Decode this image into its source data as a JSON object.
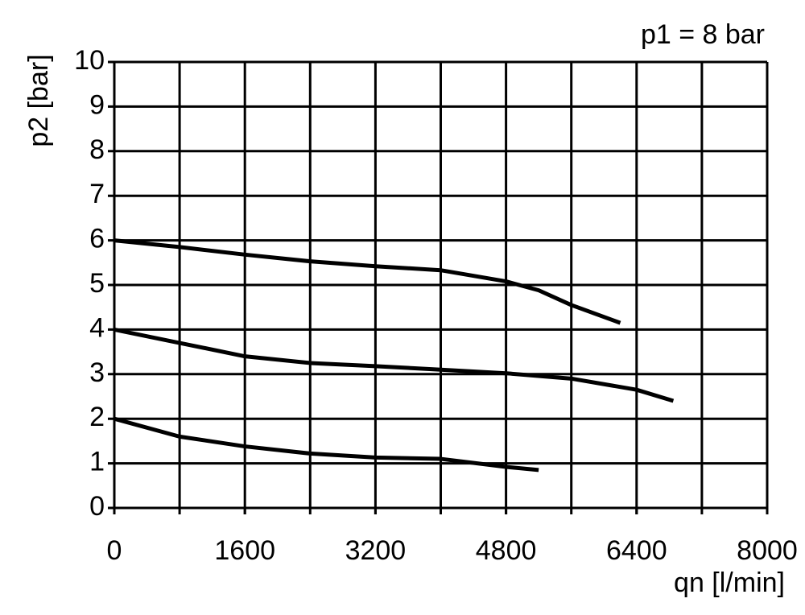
{
  "chart_data": {
    "type": "line",
    "annotation": "p1 = 8 bar",
    "x_label": "qn [l/min]",
    "y_label": "p2 [bar]",
    "xlim": [
      0,
      8000
    ],
    "xticks": [
      0,
      1600,
      3200,
      4800,
      6400,
      8000
    ],
    "x_gridlines": [
      0,
      800,
      1600,
      2400,
      3200,
      4000,
      4800,
      5600,
      6400,
      7200,
      8000
    ],
    "ylim": [
      0,
      10
    ],
    "yticks": [
      0,
      1,
      2,
      3,
      4,
      5,
      6,
      7,
      8,
      9,
      10
    ],
    "grid": true,
    "color": "#000000",
    "series": [
      {
        "x": [
          0,
          800,
          1600,
          2400,
          3200,
          4000,
          4800,
          5200,
          5600,
          6200
        ],
        "values": [
          6,
          5.85,
          5.68,
          5.53,
          5.42,
          5.33,
          5.08,
          4.88,
          4.55,
          4.15
        ]
      },
      {
        "x": [
          0,
          800,
          1600,
          2400,
          3200,
          4000,
          4800,
          5600,
          6400,
          6850
        ],
        "values": [
          4,
          3.7,
          3.4,
          3.25,
          3.18,
          3.1,
          3.02,
          2.9,
          2.65,
          2.4
        ]
      },
      {
        "x": [
          0,
          800,
          1600,
          2400,
          3200,
          4000,
          4800,
          5200
        ],
        "values": [
          2,
          1.6,
          1.38,
          1.22,
          1.13,
          1.1,
          0.92,
          0.85
        ]
      }
    ]
  }
}
